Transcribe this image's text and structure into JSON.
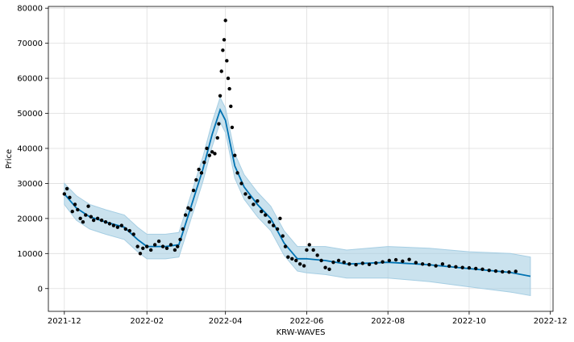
{
  "chart_data": {
    "type": "scatter",
    "title": "",
    "xlabel": "KRW-WAVES",
    "ylabel": "Price",
    "x_axis_kind": "date",
    "xlim": [
      "2021-11-19",
      "2022-12-03"
    ],
    "ylim": [
      -6500,
      80500
    ],
    "x_ticks": [
      {
        "date": "2021-12-01",
        "label": "2021-12"
      },
      {
        "date": "2022-02-01",
        "label": "2022-02"
      },
      {
        "date": "2022-04-01",
        "label": "2022-04"
      },
      {
        "date": "2022-06-01",
        "label": "2022-06"
      },
      {
        "date": "2022-08-01",
        "label": "2022-08"
      },
      {
        "date": "2022-10-01",
        "label": "2022-10"
      },
      {
        "date": "2022-12-01",
        "label": "2022-12"
      }
    ],
    "y_ticks": [
      0,
      10000,
      20000,
      30000,
      40000,
      50000,
      60000,
      70000,
      80000
    ],
    "grid": true,
    "colors": {
      "observed": "#000000",
      "forecast": "#0072b2",
      "interval": "#a6cee3"
    },
    "series": [
      {
        "role": "observed",
        "style": "points",
        "points": [
          [
            "2021-12-01",
            27000
          ],
          [
            "2021-12-03",
            28500
          ],
          [
            "2021-12-05",
            26000
          ],
          [
            "2021-12-07",
            22000
          ],
          [
            "2021-12-09",
            24000
          ],
          [
            "2021-12-11",
            22500
          ],
          [
            "2021-12-13",
            20000
          ],
          [
            "2021-12-15",
            19000
          ],
          [
            "2021-12-17",
            21000
          ],
          [
            "2021-12-19",
            23500
          ],
          [
            "2021-12-21",
            20500
          ],
          [
            "2021-12-23",
            19500
          ],
          [
            "2021-12-26",
            20000
          ],
          [
            "2021-12-29",
            19500
          ],
          [
            "2022-01-01",
            19000
          ],
          [
            "2022-01-04",
            18500
          ],
          [
            "2022-01-07",
            18000
          ],
          [
            "2022-01-10",
            17500
          ],
          [
            "2022-01-13",
            18000
          ],
          [
            "2022-01-16",
            17000
          ],
          [
            "2022-01-19",
            16500
          ],
          [
            "2022-01-22",
            15500
          ],
          [
            "2022-01-25",
            12000
          ],
          [
            "2022-01-27",
            10000
          ],
          [
            "2022-01-29",
            11500
          ],
          [
            "2022-02-01",
            12000
          ],
          [
            "2022-02-04",
            11000
          ],
          [
            "2022-02-07",
            12500
          ],
          [
            "2022-02-10",
            13500
          ],
          [
            "2022-02-13",
            12000
          ],
          [
            "2022-02-16",
            11500
          ],
          [
            "2022-02-19",
            12500
          ],
          [
            "2022-02-22",
            11000
          ],
          [
            "2022-02-24",
            12000
          ],
          [
            "2022-02-26",
            14000
          ],
          [
            "2022-02-28",
            17000
          ],
          [
            "2022-03-02",
            21000
          ],
          [
            "2022-03-04",
            23000
          ],
          [
            "2022-03-06",
            22500
          ],
          [
            "2022-03-08",
            28000
          ],
          [
            "2022-03-10",
            31000
          ],
          [
            "2022-03-12",
            34000
          ],
          [
            "2022-03-14",
            33000
          ],
          [
            "2022-03-16",
            36000
          ],
          [
            "2022-03-18",
            40000
          ],
          [
            "2022-03-20",
            38000
          ],
          [
            "2022-03-22",
            39000
          ],
          [
            "2022-03-24",
            38500
          ],
          [
            "2022-03-26",
            43000
          ],
          [
            "2022-03-27",
            47000
          ],
          [
            "2022-03-28",
            55000
          ],
          [
            "2022-03-29",
            62000
          ],
          [
            "2022-03-30",
            68000
          ],
          [
            "2022-03-31",
            71000
          ],
          [
            "2022-04-01",
            76500
          ],
          [
            "2022-04-02",
            65000
          ],
          [
            "2022-04-03",
            60000
          ],
          [
            "2022-04-04",
            57000
          ],
          [
            "2022-04-05",
            52000
          ],
          [
            "2022-04-06",
            46000
          ],
          [
            "2022-04-08",
            38000
          ],
          [
            "2022-04-10",
            33000
          ],
          [
            "2022-04-13",
            30000
          ],
          [
            "2022-04-16",
            27000
          ],
          [
            "2022-04-19",
            26000
          ],
          [
            "2022-04-22",
            24000
          ],
          [
            "2022-04-25",
            25000
          ],
          [
            "2022-04-28",
            22000
          ],
          [
            "2022-05-01",
            21000
          ],
          [
            "2022-05-04",
            19000
          ],
          [
            "2022-05-07",
            18000
          ],
          [
            "2022-05-10",
            17000
          ],
          [
            "2022-05-12",
            20000
          ],
          [
            "2022-05-14",
            15000
          ],
          [
            "2022-05-16",
            12000
          ],
          [
            "2022-05-18",
            9000
          ],
          [
            "2022-05-21",
            8500
          ],
          [
            "2022-05-24",
            8000
          ],
          [
            "2022-05-27",
            7000
          ],
          [
            "2022-05-30",
            6500
          ],
          [
            "2022-06-01",
            11000
          ],
          [
            "2022-06-03",
            12500
          ],
          [
            "2022-06-06",
            11000
          ],
          [
            "2022-06-09",
            9500
          ],
          [
            "2022-06-12",
            8000
          ],
          [
            "2022-06-15",
            6000
          ],
          [
            "2022-06-18",
            5500
          ],
          [
            "2022-06-21",
            7500
          ],
          [
            "2022-06-25",
            8000
          ],
          [
            "2022-06-29",
            7500
          ],
          [
            "2022-07-03",
            7000
          ],
          [
            "2022-07-08",
            6800
          ],
          [
            "2022-07-13",
            7200
          ],
          [
            "2022-07-18",
            6900
          ],
          [
            "2022-07-23",
            7300
          ],
          [
            "2022-07-28",
            7600
          ],
          [
            "2022-08-02",
            8000
          ],
          [
            "2022-08-07",
            8200
          ],
          [
            "2022-08-12",
            7800
          ],
          [
            "2022-08-17",
            8300
          ],
          [
            "2022-08-22",
            7400
          ],
          [
            "2022-08-27",
            7000
          ],
          [
            "2022-09-01",
            6800
          ],
          [
            "2022-09-06",
            6500
          ],
          [
            "2022-09-11",
            7000
          ],
          [
            "2022-09-16",
            6400
          ],
          [
            "2022-09-21",
            6200
          ],
          [
            "2022-09-26",
            6000
          ],
          [
            "2022-10-01",
            5900
          ],
          [
            "2022-10-06",
            5700
          ],
          [
            "2022-10-11",
            5500
          ],
          [
            "2022-10-16",
            5200
          ],
          [
            "2022-10-21",
            5000
          ],
          [
            "2022-10-26",
            4800
          ],
          [
            "2022-10-31",
            4700
          ],
          [
            "2022-11-05",
            4900
          ]
        ]
      },
      {
        "role": "forecast",
        "style": "line",
        "points": [
          [
            "2021-12-01",
            27000
          ],
          [
            "2021-12-10",
            23000
          ],
          [
            "2021-12-20",
            20500
          ],
          [
            "2022-01-01",
            19000
          ],
          [
            "2022-01-15",
            17500
          ],
          [
            "2022-01-25",
            14000
          ],
          [
            "2022-02-01",
            12000
          ],
          [
            "2022-02-15",
            12000
          ],
          [
            "2022-02-25",
            12500
          ],
          [
            "2022-03-05",
            22000
          ],
          [
            "2022-03-15",
            34000
          ],
          [
            "2022-03-22",
            44000
          ],
          [
            "2022-03-28",
            51000
          ],
          [
            "2022-04-01",
            48000
          ],
          [
            "2022-04-08",
            35000
          ],
          [
            "2022-04-15",
            29000
          ],
          [
            "2022-04-25",
            24000
          ],
          [
            "2022-05-05",
            20000
          ],
          [
            "2022-05-15",
            13000
          ],
          [
            "2022-05-25",
            8500
          ],
          [
            "2022-06-01",
            8500
          ],
          [
            "2022-06-15",
            8000
          ],
          [
            "2022-07-01",
            7000
          ],
          [
            "2022-08-01",
            7500
          ],
          [
            "2022-09-01",
            6800
          ],
          [
            "2022-10-01",
            5700
          ],
          [
            "2022-11-01",
            4600
          ],
          [
            "2022-11-16",
            3500
          ]
        ]
      }
    ],
    "interval": {
      "role": "uncertainty",
      "points": [
        [
          "2021-12-01",
          24000,
          30000
        ],
        [
          "2021-12-10",
          19500,
          26500
        ],
        [
          "2021-12-20",
          17000,
          24000
        ],
        [
          "2022-01-01",
          15500,
          22500
        ],
        [
          "2022-01-15",
          14000,
          21000
        ],
        [
          "2022-01-25",
          10500,
          17500
        ],
        [
          "2022-02-01",
          8500,
          15500
        ],
        [
          "2022-02-15",
          8500,
          15500
        ],
        [
          "2022-02-25",
          9000,
          16000
        ],
        [
          "2022-03-05",
          18500,
          25500
        ],
        [
          "2022-03-15",
          30500,
          37500
        ],
        [
          "2022-03-22",
          40500,
          47500
        ],
        [
          "2022-03-28",
          47500,
          54500
        ],
        [
          "2022-04-01",
          44500,
          51500
        ],
        [
          "2022-04-08",
          31500,
          38500
        ],
        [
          "2022-04-15",
          25500,
          32500
        ],
        [
          "2022-04-25",
          20500,
          27500
        ],
        [
          "2022-05-05",
          16500,
          23500
        ],
        [
          "2022-05-15",
          9500,
          16500
        ],
        [
          "2022-05-25",
          5000,
          12000
        ],
        [
          "2022-06-01",
          4500,
          12000
        ],
        [
          "2022-06-15",
          4000,
          12000
        ],
        [
          "2022-07-01",
          3000,
          11000
        ],
        [
          "2022-08-01",
          3000,
          12000
        ],
        [
          "2022-09-01",
          2000,
          11500
        ],
        [
          "2022-10-01",
          500,
          10500
        ],
        [
          "2022-11-01",
          -1000,
          10000
        ],
        [
          "2022-11-16",
          -2000,
          9000
        ]
      ]
    }
  }
}
